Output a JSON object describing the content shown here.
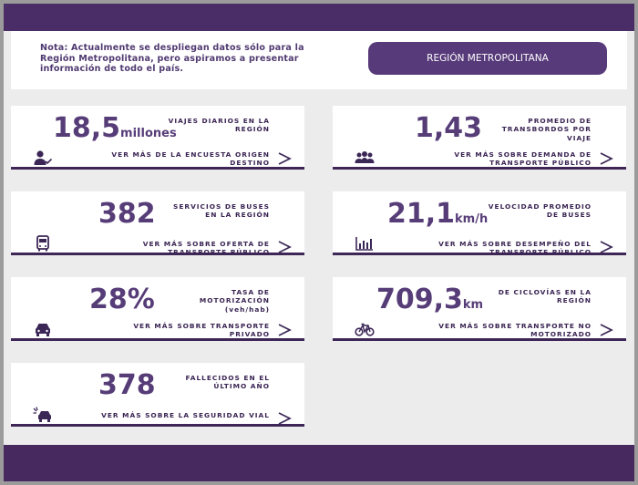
{
  "notice": {
    "text": "Nota: Actualmente se despliegan datos sólo para la Región Metropolitana, pero aspiramos a presentar información de todo el país."
  },
  "region_button": {
    "label": "REGIÓN METROPOLITANA"
  },
  "cards": [
    {
      "value": "18,5",
      "unit": "millones",
      "description": "VIAJES DIARIOS EN LA REGIÓN",
      "link": "VER MÁS DE LA ENCUESTA ORIGEN DESTINO",
      "icon": "person-check-icon"
    },
    {
      "value": "1,43",
      "unit": "",
      "description": "PROMEDIO DE TRANSBORDOS POR VIAJE",
      "link": "VER MÁS SOBRE DEMANDA DE TRANSPORTE PÚBLICO",
      "icon": "group-icon"
    },
    {
      "value": "382",
      "unit": "",
      "description": "SERVICIOS DE BUSES EN LA REGIÓN",
      "link": "VER MÁS SOBRE OFERTA DE TRANSPORTE PÚBLICO",
      "icon": "bus-icon"
    },
    {
      "value": "21,1",
      "unit": "km/h",
      "description": "VELOCIDAD PROMEDIO DE BUSES",
      "link": "VER MÁS SOBRE DESEMPEÑO DEL TRANSPORTE PÚBLICO",
      "icon": "bar-chart-icon"
    },
    {
      "value": "28%",
      "unit": "",
      "description": "TASA DE MOTORIZACIÓN (veh/hab)",
      "link": "VER MÁS SOBRE TRANSPORTE PRIVADO",
      "icon": "car-icon"
    },
    {
      "value": "709,3",
      "unit": "km",
      "description": "DE CICLOVÍAS EN LA REGIÓN",
      "link": "VER MÁS SOBRE TRANSPORTE NO MOTORIZADO",
      "icon": "bicycle-icon"
    },
    {
      "value": "378",
      "unit": "",
      "description": "FALLECIDOS EN EL ÚLTIMO AÑO",
      "link": "VER MÁS SOBRE LA SEGURIDAD VIAL",
      "icon": "car-crash-icon"
    }
  ],
  "colors": {
    "brand_purple": "#4a2d66",
    "value_purple": "#573d78",
    "text_dark": "#3a2453",
    "background": "#ececec"
  }
}
